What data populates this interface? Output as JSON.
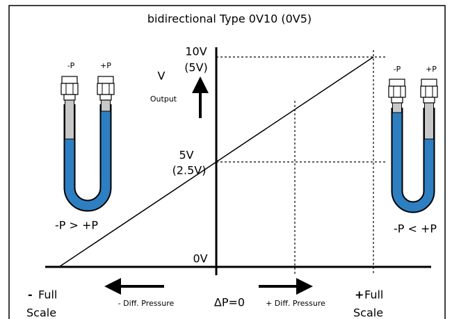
{
  "title": "bidirectional Type 0V10 (0V5)",
  "y_axis": {
    "symbol": "V",
    "label": "Output",
    "ticks": {
      "top": "10V",
      "top_alt": "(5V)",
      "mid": "5V",
      "mid_alt": "(2.5V)",
      "zero": "0V"
    }
  },
  "manometer_left": {
    "minus": "-P",
    "plus": "+P",
    "relation": "-P > +P"
  },
  "manometer_right": {
    "minus": "-P",
    "plus": "+P",
    "relation": "-P < +P"
  },
  "x_axis": {
    "left_sign": "-",
    "left_full": "Full",
    "left_scale": "Scale",
    "left_arrow": "- Diff. Pressure",
    "center": "ΔP=0",
    "right_arrow": "+ Diff. Pressure",
    "right_sign": "+",
    "right_full": "Full",
    "right_scale": "Scale"
  }
}
